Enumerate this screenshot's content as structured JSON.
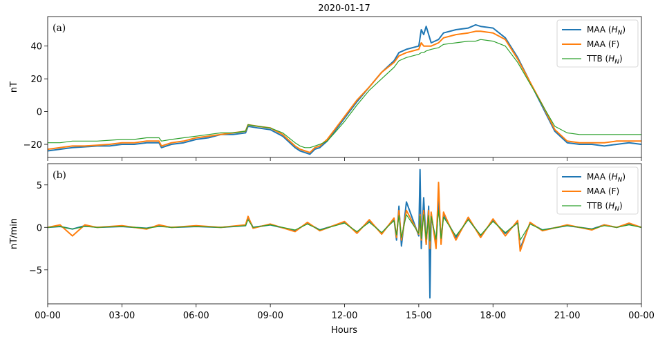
{
  "title": "2020-01-17",
  "xlabel": "Hours",
  "x_ticks": [
    "00-00",
    "03-00",
    "06-00",
    "09-00",
    "12-00",
    "15-00",
    "18-00",
    "21-00",
    "00-00"
  ],
  "colors": {
    "maa_h": "#1f77b4",
    "maa_f": "#ff7f0e",
    "ttb_h": "#2ca02c"
  },
  "chart_data": [
    {
      "type": "line",
      "panel_label": "(a)",
      "ylabel": "nT",
      "xlim": [
        0,
        24
      ],
      "ylim": [
        -28,
        58
      ],
      "y_ticks": [
        -20,
        0,
        20,
        40
      ],
      "legend_position": "top-right",
      "series": [
        {
          "name": "MAA (H_N)",
          "legend_main": "MAA (",
          "legend_italic": "H",
          "legend_sub": "N",
          "legend_end": ")",
          "color_key": "maa_h",
          "x": [
            0,
            0.5,
            1,
            1.5,
            2,
            2.5,
            3,
            3.5,
            4,
            4.5,
            4.6,
            5,
            5.5,
            6,
            6.5,
            7,
            7.5,
            8,
            8.1,
            8.5,
            9,
            9.5,
            10,
            10.2,
            10.4,
            10.6,
            10.8,
            11,
            11.3,
            11.6,
            12,
            12.5,
            13,
            13.5,
            14,
            14.2,
            14.5,
            15,
            15.1,
            15.2,
            15.3,
            15.5,
            15.8,
            16,
            16.5,
            17,
            17.3,
            17.5,
            18,
            18.5,
            19,
            19.5,
            20,
            20.5,
            21,
            21.5,
            22,
            22.5,
            23,
            23.5,
            24
          ],
          "y": [
            -24,
            -23,
            -22,
            -21.5,
            -21,
            -21,
            -20,
            -20,
            -19,
            -19,
            -22,
            -20,
            -19,
            -17,
            -16,
            -14,
            -14,
            -13,
            -9,
            -10,
            -11,
            -15,
            -22,
            -24,
            -25,
            -26,
            -23,
            -22,
            -18,
            -12,
            -4,
            6,
            15,
            24,
            31,
            36,
            38,
            40,
            50,
            47,
            52,
            42,
            44,
            48,
            50,
            51,
            53,
            52,
            51,
            45,
            33,
            18,
            3,
            -12,
            -19,
            -20,
            -20,
            -21,
            -20,
            -19,
            -20
          ]
        },
        {
          "name": "MAA (F)",
          "legend_main": "MAA (F)",
          "legend_italic": "",
          "legend_sub": "",
          "legend_end": "",
          "color_key": "maa_f",
          "x": [
            0,
            0.5,
            1,
            1.5,
            2,
            2.5,
            3,
            3.5,
            4,
            4.5,
            4.6,
            5,
            5.5,
            6,
            6.5,
            7,
            7.5,
            8,
            8.1,
            8.5,
            9,
            9.5,
            10,
            10.2,
            10.4,
            10.6,
            10.8,
            11,
            11.3,
            11.6,
            12,
            12.5,
            13,
            13.5,
            14,
            14.2,
            14.5,
            15,
            15.1,
            15.2,
            15.3,
            15.5,
            15.8,
            16,
            16.5,
            17,
            17.3,
            17.5,
            18,
            18.5,
            19,
            19.5,
            20,
            20.5,
            21,
            21.5,
            22,
            22.5,
            23,
            23.5,
            24
          ],
          "y": [
            -23,
            -22,
            -21,
            -21,
            -20.5,
            -20,
            -19,
            -19,
            -18,
            -18,
            -21,
            -19,
            -18,
            -16,
            -15,
            -14,
            -13,
            -12,
            -8,
            -9,
            -10,
            -14,
            -21,
            -23,
            -24,
            -25,
            -22,
            -21,
            -17,
            -11,
            -3,
            7,
            15,
            24,
            30,
            34,
            36,
            38,
            42,
            40,
            40,
            40,
            42,
            45,
            47,
            48,
            49,
            49,
            48,
            44,
            32,
            18,
            4,
            -11,
            -18,
            -19,
            -19,
            -19,
            -18,
            -18,
            -18
          ]
        },
        {
          "name": "TTB (H_N)",
          "legend_main": "TTB (",
          "legend_italic": "H",
          "legend_sub": "N",
          "legend_end": ")",
          "color_key": "ttb_h",
          "x": [
            0,
            0.5,
            1,
            1.5,
            2,
            2.5,
            3,
            3.5,
            4,
            4.5,
            4.6,
            5,
            5.5,
            6,
            6.5,
            7,
            7.5,
            8,
            8.1,
            8.5,
            9,
            9.5,
            10,
            10.2,
            10.4,
            10.6,
            10.8,
            11,
            11.3,
            11.6,
            12,
            12.5,
            13,
            13.5,
            14,
            14.2,
            14.5,
            15,
            15.1,
            15.2,
            15.3,
            15.5,
            15.8,
            16,
            16.5,
            17,
            17.3,
            17.5,
            18,
            18.5,
            19,
            19.5,
            20,
            20.5,
            21,
            21.5,
            22,
            22.5,
            23,
            23.5,
            24
          ],
          "y": [
            -19,
            -19,
            -18,
            -18,
            -18,
            -17.5,
            -17,
            -17,
            -16,
            -16,
            -18,
            -17,
            -16,
            -15,
            -14,
            -13,
            -13,
            -12,
            -8,
            -9,
            -10,
            -13,
            -19,
            -21,
            -22,
            -22,
            -21,
            -20,
            -18,
            -13,
            -6,
            4,
            13,
            20,
            27,
            31,
            33,
            35,
            36,
            36,
            37,
            38,
            39,
            41,
            42,
            43,
            43,
            44,
            43,
            40,
            30,
            17,
            4,
            -9,
            -13,
            -14,
            -14,
            -14,
            -14,
            -14,
            -14
          ]
        }
      ]
    },
    {
      "type": "line",
      "panel_label": "(b)",
      "ylabel": "nT/min",
      "xlim": [
        0,
        24
      ],
      "ylim": [
        -9,
        7.5
      ],
      "y_ticks": [
        -5,
        0,
        5
      ],
      "legend_position": "top-right",
      "series": [
        {
          "name": "MAA (H_N)",
          "legend_main": "MAA (",
          "legend_italic": "H",
          "legend_sub": "N",
          "legend_end": ")",
          "color_key": "maa_h",
          "x": [
            0,
            0.5,
            1,
            1.5,
            2,
            3,
            4,
            4.5,
            5,
            6,
            7,
            8,
            8.1,
            8.3,
            9,
            10,
            10.5,
            11,
            12,
            12.5,
            13,
            13.5,
            14,
            14.1,
            14.2,
            14.3,
            14.5,
            15,
            15.05,
            15.1,
            15.2,
            15.3,
            15.4,
            15.45,
            15.5,
            15.7,
            15.8,
            15.9,
            16,
            16.5,
            17,
            17.5,
            18,
            18.5,
            19,
            19.1,
            19.5,
            20,
            21,
            22,
            22.5,
            23,
            23.5,
            24
          ],
          "y": [
            0,
            0.1,
            -0.2,
            0.2,
            0,
            0.1,
            -0.1,
            0.2,
            0,
            0.1,
            0,
            0.2,
            1.2,
            0,
            0.3,
            -0.4,
            0.5,
            -0.3,
            0.6,
            -0.6,
            0.8,
            -0.7,
            1.0,
            -1.5,
            2.5,
            -2.2,
            3.0,
            -1.0,
            6.8,
            -2.5,
            3.5,
            -2.0,
            2.5,
            -8.3,
            1.5,
            -2.0,
            3.5,
            -1.5,
            1.5,
            -1.2,
            1.0,
            -1.0,
            0.8,
            -0.7,
            0.6,
            -2.5,
            0.5,
            -0.3,
            0.2,
            -0.2,
            0.3,
            0,
            0.4,
            0
          ]
        },
        {
          "name": "MAA (F)",
          "legend_main": "MAA (F)",
          "legend_italic": "",
          "legend_sub": "",
          "legend_end": "",
          "color_key": "maa_f",
          "x": [
            0,
            0.5,
            1,
            1.5,
            2,
            3,
            4,
            4.5,
            5,
            6,
            7,
            8,
            8.1,
            8.3,
            9,
            10,
            10.5,
            11,
            12,
            12.5,
            13,
            13.5,
            14,
            14.1,
            14.2,
            14.3,
            14.5,
            15,
            15.05,
            15.1,
            15.2,
            15.3,
            15.4,
            15.45,
            15.5,
            15.7,
            15.8,
            15.9,
            16,
            16.5,
            17,
            17.5,
            18,
            18.5,
            19,
            19.1,
            19.5,
            20,
            21,
            22,
            22.5,
            23,
            23.5,
            24
          ],
          "y": [
            0,
            0.3,
            -1.0,
            0.3,
            0,
            0.2,
            -0.2,
            0.3,
            0,
            0.2,
            0,
            0.3,
            1.3,
            -0.1,
            0.4,
            -0.5,
            0.6,
            -0.4,
            0.7,
            -0.7,
            0.9,
            -0.8,
            1.1,
            -1.2,
            2.0,
            -1.5,
            2.0,
            -0.8,
            1.5,
            -1.5,
            2.0,
            -2.0,
            2.0,
            -2.5,
            1.8,
            -2.5,
            5.3,
            -2.0,
            1.8,
            -1.5,
            1.2,
            -1.2,
            1.0,
            -1.0,
            0.8,
            -2.8,
            0.6,
            -0.4,
            0.3,
            -0.3,
            0.3,
            0,
            0.5,
            0
          ]
        },
        {
          "name": "TTB (H_N)",
          "legend_main": "TTB (",
          "legend_italic": "H",
          "legend_sub": "N",
          "legend_end": ")",
          "color_key": "ttb_h",
          "x": [
            0,
            0.5,
            1,
            1.5,
            2,
            3,
            4,
            4.5,
            5,
            6,
            7,
            8,
            8.1,
            8.3,
            9,
            10,
            10.5,
            11,
            12,
            12.5,
            13,
            13.5,
            14,
            14.1,
            14.2,
            14.3,
            14.5,
            15,
            15.05,
            15.1,
            15.2,
            15.3,
            15.4,
            15.45,
            15.5,
            15.7,
            15.8,
            15.9,
            16,
            16.5,
            17,
            17.5,
            18,
            18.5,
            19,
            19.1,
            19.5,
            20,
            21,
            22,
            22.5,
            23,
            23.5,
            24
          ],
          "y": [
            0,
            0.1,
            -0.2,
            0.1,
            0,
            0.1,
            -0.1,
            0.1,
            0,
            0.1,
            0,
            0.2,
            0.9,
            0,
            0.3,
            -0.3,
            0.4,
            -0.3,
            0.5,
            -0.5,
            0.6,
            -0.6,
            0.8,
            -0.9,
            1.4,
            -1.2,
            1.5,
            -0.7,
            1.3,
            -1.3,
            1.5,
            -1.4,
            1.4,
            -1.6,
            1.3,
            -1.4,
            2.0,
            -1.3,
            1.2,
            -1.0,
            0.9,
            -0.9,
            0.7,
            -0.6,
            0.5,
            -1.5,
            0.4,
            -0.3,
            0.2,
            -0.2,
            0.2,
            0,
            0.3,
            0
          ]
        }
      ]
    }
  ]
}
